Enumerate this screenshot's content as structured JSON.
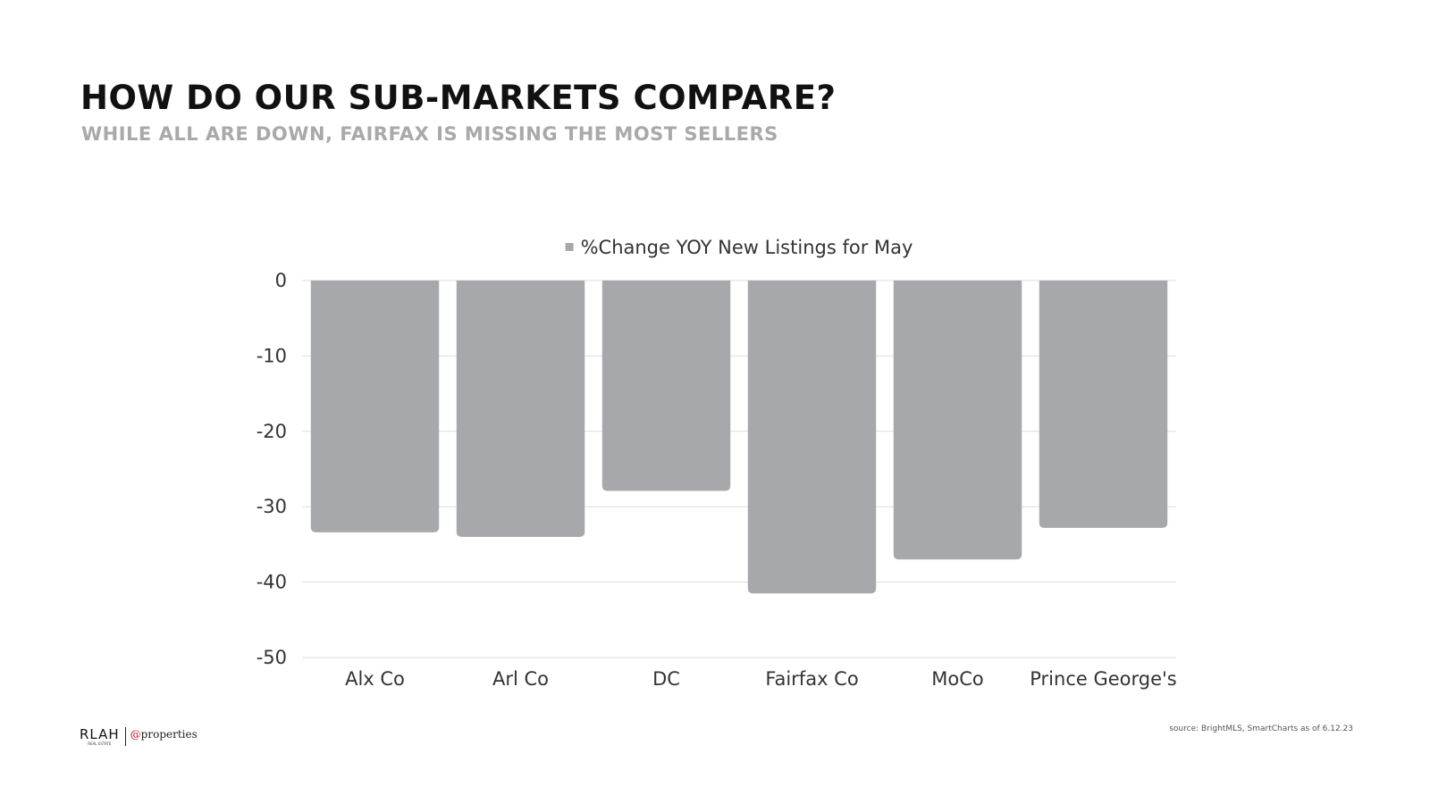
{
  "header": {
    "title": "HOW DO OUR SUB-MARKETS COMPARE?",
    "subtitle": "WHILE ALL ARE DOWN, FAIRFAX IS MISSING THE MOST SELLERS"
  },
  "chart_data": {
    "type": "bar",
    "categories": [
      "Alx Co",
      "Arl Co",
      "DC",
      "Fairfax Co",
      "MoCo",
      "Prince George's"
    ],
    "series": [
      {
        "name": "%Change YOY New Listings for May",
        "values": [
          -33.4,
          -34.0,
          -27.9,
          -41.5,
          -37.0,
          -32.8
        ]
      }
    ],
    "ylim": [
      -50,
      0
    ],
    "yticks": [
      0,
      -10,
      -20,
      -30,
      -40,
      -50
    ],
    "grid": true,
    "legend": "top-center",
    "bar_color": "#a7a8ac",
    "grid_color": "#dddddd"
  },
  "footer": {
    "logo_main": "RLAH",
    "logo_sub": "REAL ESTATE",
    "logo_partner_at": "@",
    "logo_partner_name": "properties",
    "source": "source: BrightMLS, SmartCharts as of 6.12.23"
  }
}
